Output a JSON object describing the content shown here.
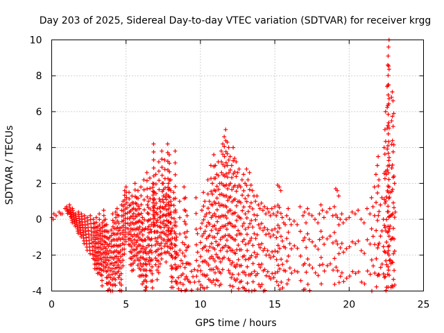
{
  "chart_data": {
    "type": "scatter",
    "title": "Day 203 of 2025, Sidereal Day-to-day VTEC variation (SDTVAR) for receiver krgg",
    "xlabel": "GPS time / hours",
    "ylabel": "SDTVAR / TECUs",
    "xlim": [
      0,
      25
    ],
    "ylim": [
      -4,
      10
    ],
    "xticks": [
      "0",
      "5",
      "10",
      "15",
      "20",
      "25"
    ],
    "yticks": [
      "-4",
      "-2",
      "0",
      "2",
      "4",
      "6",
      "8",
      "10"
    ],
    "grid": true,
    "marker": "+",
    "color": "#ff0000",
    "series": [
      {
        "name": "SDTVAR",
        "points": [
          [
            0.0,
            0.1
          ],
          [
            0.1,
            0.0
          ],
          [
            0.15,
            0.3
          ],
          [
            0.3,
            0.2
          ],
          [
            0.5,
            0.4
          ],
          [
            0.7,
            0.3
          ],
          [
            0.9,
            0.6
          ],
          [
            1.0,
            0.7
          ],
          [
            1.1,
            0.5
          ],
          [
            1.2,
            0.8
          ],
          [
            1.3,
            0.4
          ],
          [
            1.4,
            0.6
          ],
          [
            1.6,
            0.3
          ],
          [
            1.8,
            0.4
          ],
          [
            2.0,
            0.3
          ],
          [
            2.2,
            0.2
          ],
          [
            2.4,
            0.1
          ],
          [
            2.6,
            0.2
          ],
          [
            2.8,
            0.0
          ],
          [
            2.9,
            -0.2
          ],
          [
            3.0,
            0.1
          ],
          [
            3.1,
            -0.4
          ],
          [
            3.2,
            0.3
          ],
          [
            3.3,
            -0.5
          ],
          [
            3.4,
            -0.2
          ],
          [
            3.5,
            0.5
          ],
          [
            3.6,
            0.0
          ],
          [
            3.7,
            -0.3
          ],
          [
            3.8,
            -0.7
          ],
          [
            3.9,
            -1.0
          ],
          [
            4.0,
            -0.6
          ],
          [
            4.1,
            0.3
          ],
          [
            4.2,
            -0.2
          ],
          [
            4.3,
            0.4
          ],
          [
            4.4,
            0.6
          ],
          [
            4.5,
            0.2
          ],
          [
            4.6,
            -0.5
          ],
          [
            4.7,
            0.8
          ],
          [
            4.8,
            1.0
          ],
          [
            4.9,
            1.6
          ],
          [
            5.0,
            1.8
          ],
          [
            5.2,
            1.5
          ],
          [
            5.3,
            0.8
          ],
          [
            5.4,
            1.3
          ],
          [
            5.5,
            0.9
          ],
          [
            5.6,
            2.0
          ],
          [
            5.7,
            1.2
          ],
          [
            5.8,
            1.6
          ],
          [
            5.9,
            0.6
          ],
          [
            6.0,
            1.8
          ],
          [
            6.1,
            0.1
          ],
          [
            6.2,
            2.2
          ],
          [
            6.3,
            -0.5
          ],
          [
            6.35,
            -1.6
          ],
          [
            6.4,
            2.6
          ],
          [
            6.5,
            1.0
          ],
          [
            6.6,
            2.3
          ],
          [
            6.7,
            -0.3
          ],
          [
            6.8,
            2.0
          ],
          [
            6.85,
            4.2
          ],
          [
            6.9,
            1.5
          ],
          [
            7.0,
            2.5
          ],
          [
            7.1,
            0.6
          ],
          [
            7.2,
            3.2
          ],
          [
            7.3,
            1.0
          ],
          [
            7.4,
            3.8
          ],
          [
            7.5,
            2.0
          ],
          [
            7.6,
            3.3
          ],
          [
            7.7,
            1.4
          ],
          [
            7.8,
            4.2
          ],
          [
            7.85,
            2.0
          ],
          [
            7.9,
            3.6
          ],
          [
            8.0,
            2.2
          ],
          [
            8.05,
            0.8
          ],
          [
            8.1,
            -0.5
          ],
          [
            8.2,
            1.5
          ],
          [
            8.3,
            3.8
          ],
          [
            8.35,
            0.4
          ],
          [
            8.4,
            -1.0
          ],
          [
            8.5,
            -2.0
          ],
          [
            8.6,
            1.0
          ],
          [
            8.7,
            -2.3
          ],
          [
            8.8,
            -1.3
          ],
          [
            8.9,
            1.8
          ],
          [
            9.0,
            1.2
          ],
          [
            9.1,
            0.2
          ],
          [
            9.2,
            -1.5
          ],
          [
            9.3,
            -2.5
          ],
          [
            9.4,
            -2.9
          ],
          [
            9.5,
            -3.2
          ],
          [
            9.6,
            -2.8
          ],
          [
            9.7,
            1.2
          ],
          [
            9.8,
            -0.8
          ],
          [
            9.9,
            -2.6
          ],
          [
            10.0,
            -0.5
          ],
          [
            10.1,
            0.5
          ],
          [
            10.2,
            1.5
          ],
          [
            10.3,
            1.0
          ],
          [
            10.4,
            0.3
          ],
          [
            10.5,
            2.2
          ],
          [
            10.6,
            1.0
          ],
          [
            10.7,
            3.0
          ],
          [
            10.8,
            2.0
          ],
          [
            10.9,
            3.6
          ],
          [
            11.0,
            3.0
          ],
          [
            11.1,
            2.5
          ],
          [
            11.2,
            3.2
          ],
          [
            11.3,
            2.0
          ],
          [
            11.4,
            3.8
          ],
          [
            11.5,
            4.2
          ],
          [
            11.6,
            4.6
          ],
          [
            11.7,
            5.0
          ],
          [
            11.8,
            4.3
          ],
          [
            11.9,
            4.0
          ],
          [
            12.0,
            3.5
          ],
          [
            12.1,
            3.0
          ],
          [
            12.2,
            4.0
          ],
          [
            12.3,
            3.4
          ],
          [
            12.4,
            3.2
          ],
          [
            12.5,
            2.6
          ],
          [
            12.6,
            2.8
          ],
          [
            12.7,
            1.8
          ],
          [
            12.8,
            2.2
          ],
          [
            12.9,
            2.5
          ],
          [
            13.0,
            2.0
          ],
          [
            13.1,
            2.8
          ],
          [
            13.2,
            2.2
          ],
          [
            13.3,
            2.6
          ],
          [
            13.4,
            1.9
          ],
          [
            13.5,
            1.6
          ],
          [
            13.6,
            1.3
          ],
          [
            13.7,
            1.0
          ],
          [
            13.8,
            1.3
          ],
          [
            13.9,
            0.8
          ],
          [
            14.0,
            0.6
          ],
          [
            14.1,
            0.9
          ],
          [
            14.2,
            0.5
          ],
          [
            14.3,
            0.7
          ],
          [
            14.4,
            0.3
          ],
          [
            14.5,
            0.6
          ],
          [
            14.6,
            0.4
          ],
          [
            14.7,
            0.2
          ],
          [
            14.8,
            0.6
          ],
          [
            14.9,
            0.3
          ],
          [
            15.0,
            0.7
          ],
          [
            15.1,
            0.2
          ],
          [
            15.2,
            0.4
          ],
          [
            15.2,
            1.9
          ],
          [
            15.3,
            1.8
          ],
          [
            15.4,
            1.6
          ],
          [
            15.5,
            0.1
          ],
          [
            15.6,
            -0.2
          ],
          [
            15.7,
            -0.3
          ],
          [
            15.8,
            0.2
          ],
          [
            15.9,
            0.6
          ],
          [
            16.0,
            0.0
          ],
          [
            16.1,
            -0.3
          ],
          [
            16.3,
            -0.1
          ],
          [
            16.5,
            -0.3
          ],
          [
            16.7,
            0.7
          ],
          [
            16.9,
            0.2
          ],
          [
            17.0,
            0.4
          ],
          [
            17.1,
            -0.2
          ],
          [
            17.2,
            0.6
          ],
          [
            17.3,
            0.3
          ],
          [
            17.5,
            0.2
          ],
          [
            17.7,
            0.0
          ],
          [
            17.9,
            -0.2
          ],
          [
            18.0,
            0.3
          ],
          [
            18.1,
            0.8
          ],
          [
            18.2,
            0.5
          ],
          [
            18.3,
            0.1
          ],
          [
            18.5,
            0.4
          ],
          [
            18.7,
            0.6
          ],
          [
            18.9,
            0.2
          ],
          [
            19.0,
            0.7
          ],
          [
            19.1,
            1.7
          ],
          [
            19.2,
            1.6
          ],
          [
            19.3,
            1.3
          ],
          [
            19.4,
            0.0
          ],
          [
            19.5,
            0.3
          ],
          [
            19.6,
            -0.2
          ],
          [
            19.8,
            0.0
          ],
          [
            20.0,
            0.1
          ],
          [
            20.2,
            0.4
          ],
          [
            20.4,
            0.3
          ],
          [
            20.6,
            0.5
          ],
          [
            20.8,
            0.0
          ],
          [
            21.0,
            -0.2
          ],
          [
            21.2,
            0.6
          ],
          [
            21.4,
            0.3
          ],
          [
            21.5,
            1.2
          ],
          [
            21.6,
            0.7
          ],
          [
            21.7,
            1.8
          ],
          [
            21.8,
            2.5
          ],
          [
            21.9,
            3.0
          ],
          [
            21.95,
            3.5
          ],
          [
            22.0,
            2.2
          ],
          [
            22.1,
            0.8
          ],
          [
            22.2,
            1.2
          ],
          [
            22.3,
            0.0
          ],
          [
            22.35,
            4.0
          ],
          [
            22.4,
            5.0
          ],
          [
            22.45,
            6.0
          ],
          [
            22.5,
            2.5
          ],
          [
            22.55,
            7.4
          ],
          [
            22.6,
            8.6
          ],
          [
            22.62,
            9.1
          ],
          [
            22.65,
            9.6
          ],
          [
            22.68,
            10.0
          ],
          [
            22.7,
            3.0
          ],
          [
            22.75,
            1.5
          ],
          [
            22.8,
            0.2
          ],
          [
            22.85,
            6.8
          ],
          [
            22.9,
            7.1
          ],
          [
            22.95,
            6.6
          ],
          [
            23.0,
            5.9
          ],
          [
            23.05,
            2.0
          ],
          [
            23.1,
            0.4
          ]
        ]
      }
    ]
  }
}
